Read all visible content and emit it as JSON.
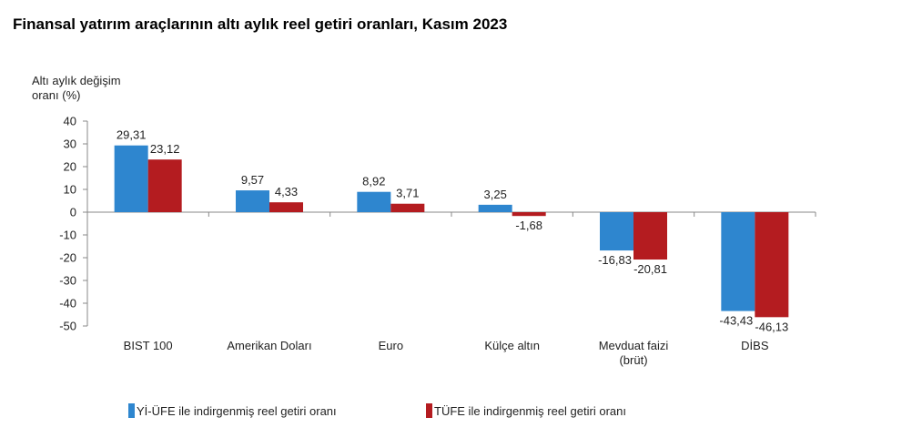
{
  "title": "Finansal yatırım araçlarının altı aylık reel getiri oranları, Kasım 2023",
  "chart_data": {
    "type": "bar",
    "title": "Finansal yatırım araçlarının altı aylık reel getiri oranları, Kasım 2023",
    "ylabel_lines": [
      "Altı aylık değişim",
      "oranı (%)"
    ],
    "xlabel": "",
    "ylim": [
      -50,
      40
    ],
    "yticks": [
      40,
      30,
      20,
      10,
      0,
      -10,
      -20,
      -30,
      -40,
      -50
    ],
    "categories": [
      [
        "BIST 100"
      ],
      [
        "Amerikan Doları"
      ],
      [
        "Euro"
      ],
      [
        "Külçe altın"
      ],
      [
        "Mevduat faizi",
        "(brüt)"
      ],
      [
        "DİBS"
      ]
    ],
    "series": [
      {
        "name": "Yİ-ÜFE ile indirgenmiş reel getiri oranı",
        "color": "#2e86cf",
        "values": [
          29.31,
          9.57,
          8.92,
          3.25,
          -16.83,
          -43.43
        ],
        "labels": [
          "29,31",
          "9,57",
          "8,92",
          "3,25",
          "-16,83",
          "-43,43"
        ]
      },
      {
        "name": "TÜFE ile indirgenmiş reel getiri oranı",
        "color": "#b41c20",
        "values": [
          23.12,
          4.33,
          3.71,
          -1.68,
          -20.81,
          -46.13
        ],
        "labels": [
          "23,12",
          "4,33",
          "3,71",
          "-1,68",
          "-20,81",
          "-46,13"
        ]
      }
    ],
    "grid": false,
    "legend_position": "bottom"
  }
}
